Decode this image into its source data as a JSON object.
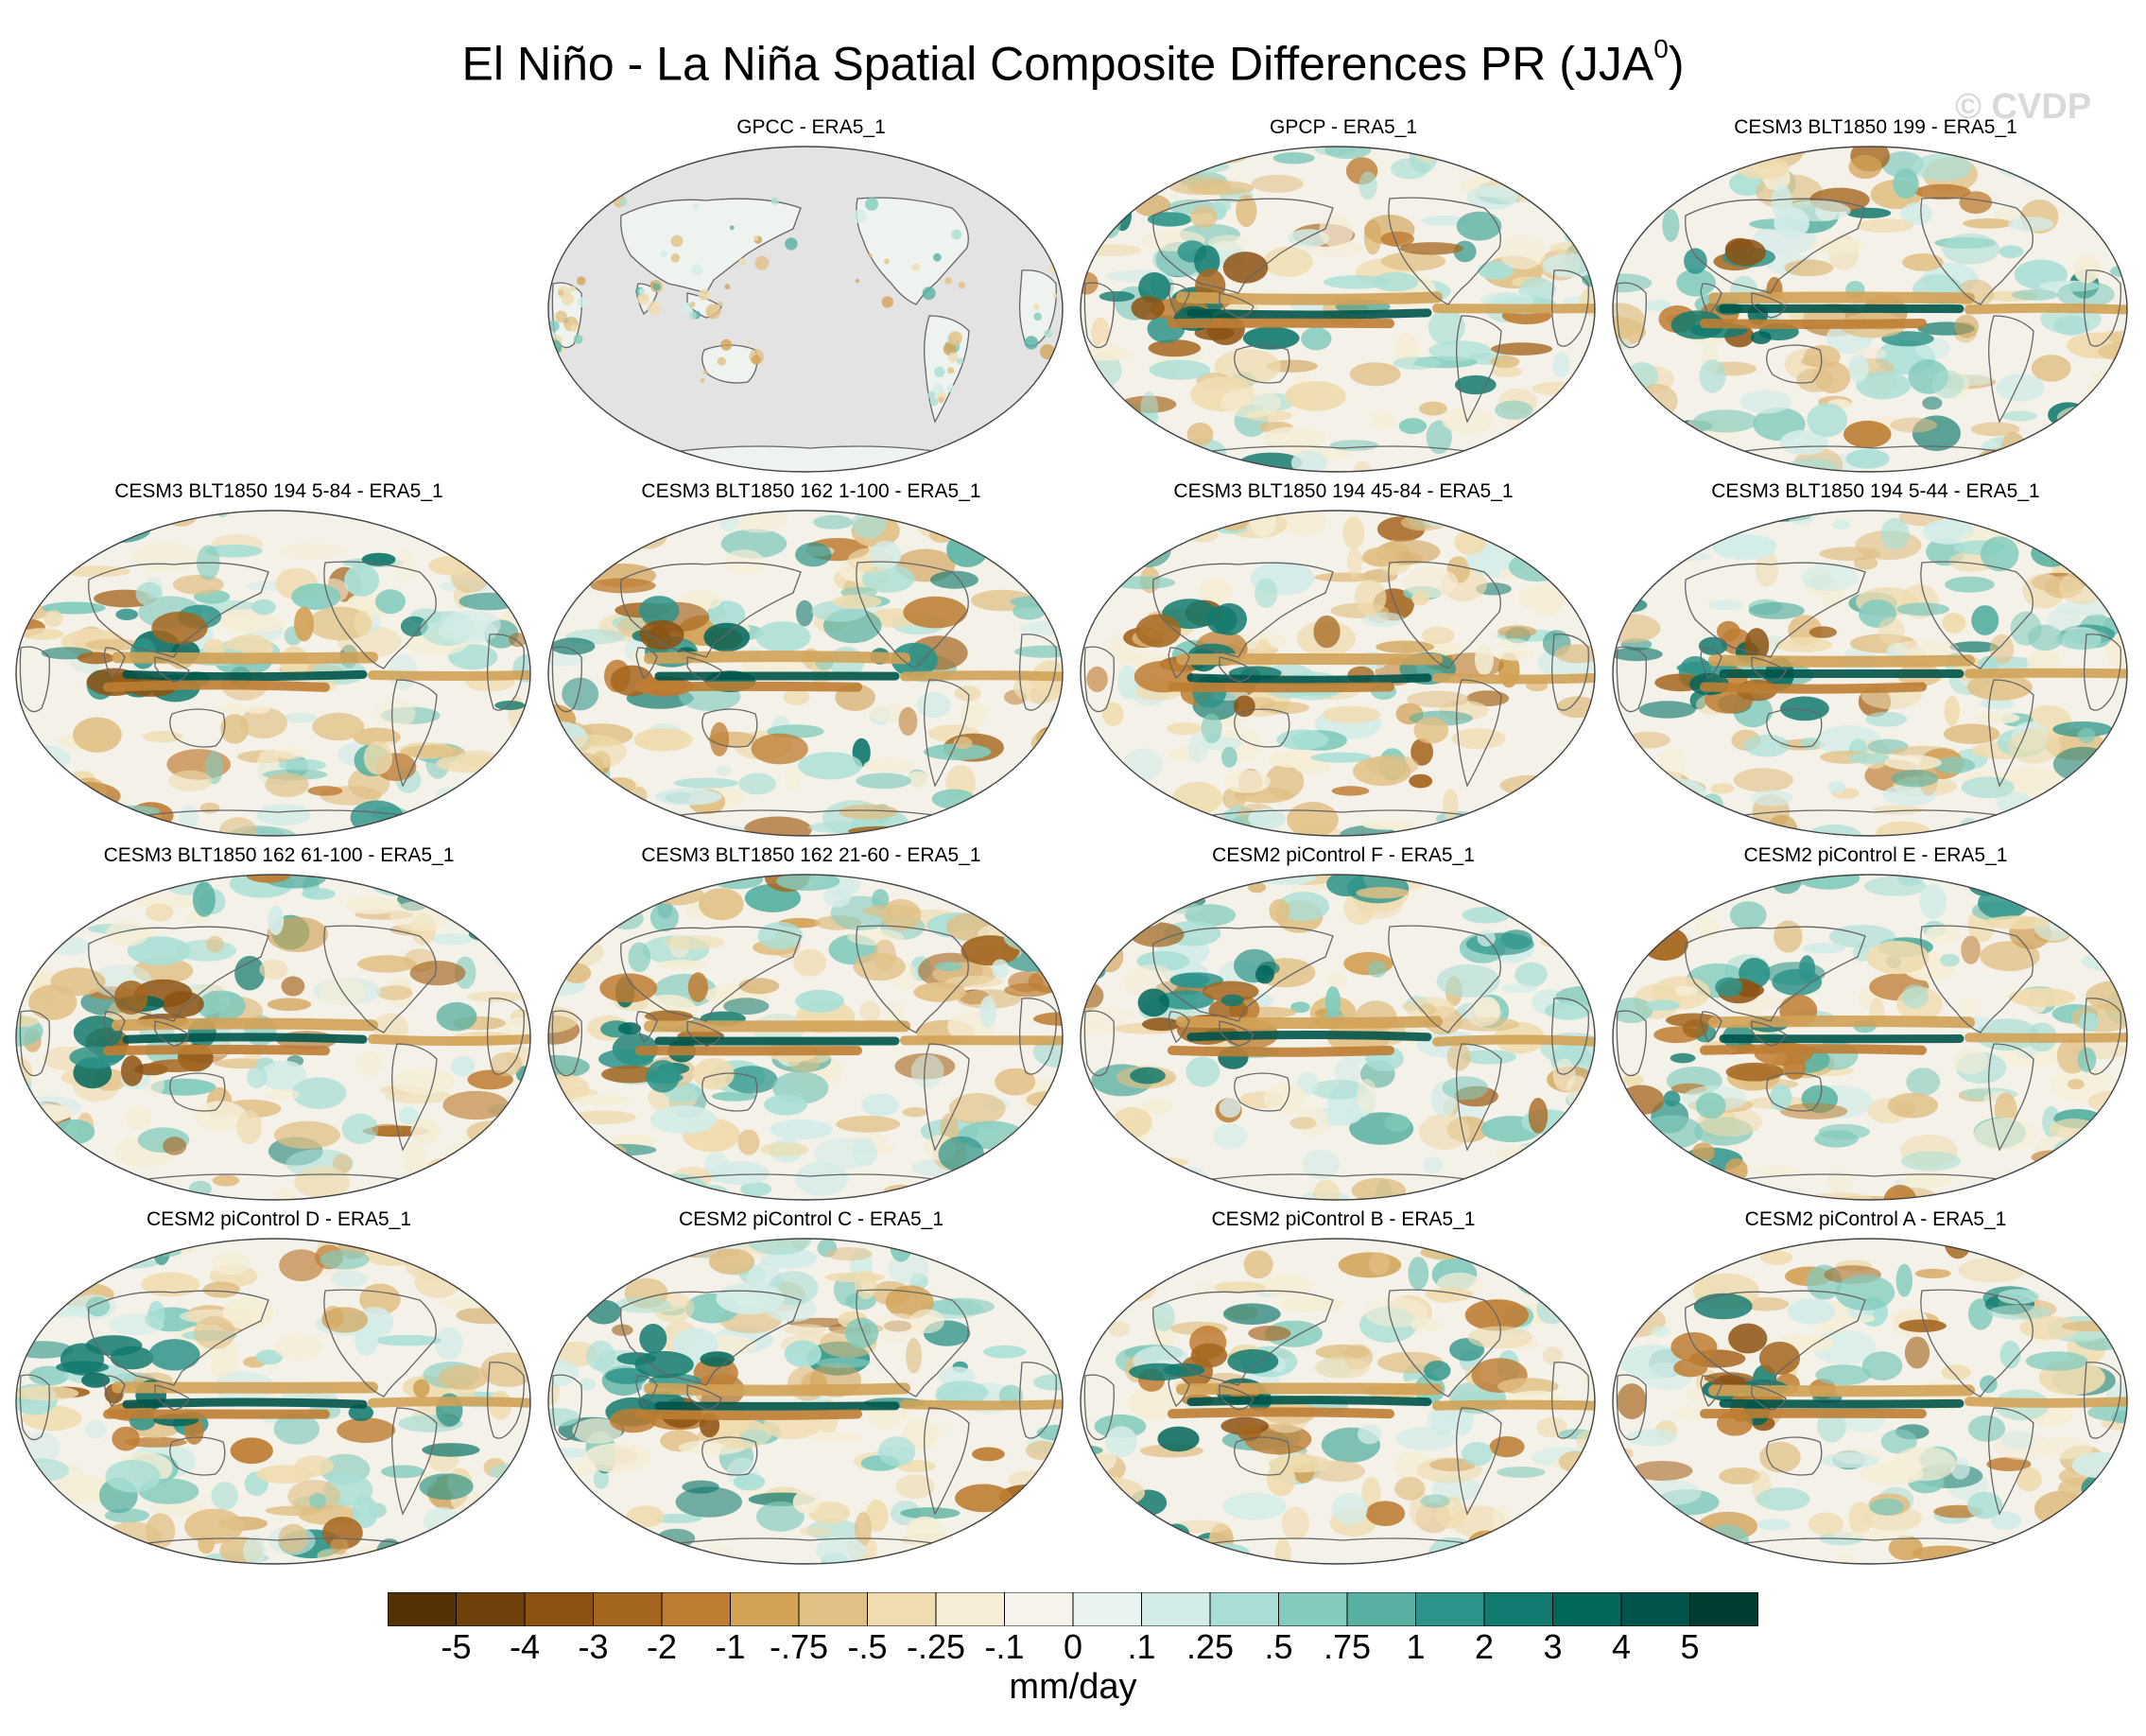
{
  "chart_data": {
    "type": "map_panels",
    "title_main": "El Niño - La Niña Spatial Composite Differences PR (JJA",
    "title_sup": "0",
    "title_close": ")",
    "watermark": "© CVDP",
    "units": "mm/day",
    "colorbar": {
      "colors": [
        "#543005",
        "#6f420c",
        "#8c5212",
        "#a5661f",
        "#be7d33",
        "#d2a257",
        "#e1c085",
        "#efdcaf",
        "#f5edd5",
        "#f5f3ec",
        "#e9f3f1",
        "#d3ece8",
        "#aadfd6",
        "#82cbbd",
        "#57b0a1",
        "#2e9489",
        "#137a6f",
        "#00665a",
        "#00544a",
        "#003c30"
      ],
      "labels": [
        "-5",
        "-4",
        "-3",
        "-2",
        "-1",
        "-.75",
        "-.5",
        "-.25",
        "-.1",
        "0",
        ".1",
        ".25",
        ".5",
        ".75",
        "1",
        "2",
        "3",
        "4",
        "5"
      ]
    },
    "panels": [
      {
        "title": "GPCC - ERA5_1",
        "land_only": true
      },
      {
        "title": "GPCP - ERA5_1",
        "land_only": false
      },
      {
        "title": "CESM3 BLT1850 199 - ERA5_1",
        "land_only": false
      },
      {
        "title": "CESM3 BLT1850 194 5-84 - ERA5_1",
        "land_only": false
      },
      {
        "title": "CESM3 BLT1850 162 1-100 - ERA5_1",
        "land_only": false
      },
      {
        "title": "CESM3 BLT1850 194 45-84 - ERA5_1",
        "land_only": false
      },
      {
        "title": "CESM3 BLT1850 194 5-44 - ERA5_1",
        "land_only": false
      },
      {
        "title": "CESM3 BLT1850 162 61-100 - ERA5_1",
        "land_only": false
      },
      {
        "title": "CESM3 BLT1850 162 21-60 - ERA5_1",
        "land_only": false
      },
      {
        "title": "CESM2 piControl F - ERA5_1",
        "land_only": false
      },
      {
        "title": "CESM2 piControl E - ERA5_1",
        "land_only": false
      },
      {
        "title": "CESM2 piControl D - ERA5_1",
        "land_only": false
      },
      {
        "title": "CESM2 piControl C - ERA5_1",
        "land_only": false
      },
      {
        "title": "CESM2 piControl B - ERA5_1",
        "land_only": false
      },
      {
        "title": "CESM2 piControl A - ERA5_1",
        "land_only": false
      }
    ]
  }
}
